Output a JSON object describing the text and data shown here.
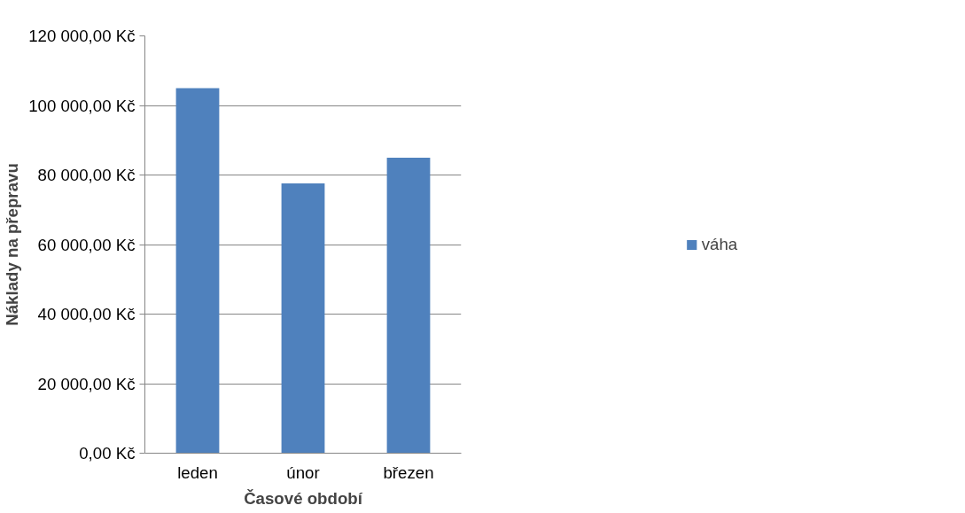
{
  "chart_data": {
    "type": "bar",
    "xlabel": "Časové období",
    "ylabel": "Náklady na přepravu",
    "categories": [
      "leden",
      "únor",
      "březen"
    ],
    "series": [
      {
        "name": "váha",
        "color": "#4f81bd",
        "values": [
          105000,
          77600,
          85000
        ]
      }
    ],
    "ylim": [
      0,
      120000
    ],
    "yticks": [
      {
        "value": 0,
        "label": "0,00 Kč"
      },
      {
        "value": 20000,
        "label": "20 000,00 Kč"
      },
      {
        "value": 40000,
        "label": "40 000,00 Kč"
      },
      {
        "value": 60000,
        "label": "60 000,00 Kč"
      },
      {
        "value": 80000,
        "label": "80 000,00 Kč"
      },
      {
        "value": 100000,
        "label": "100 000,00 Kč"
      },
      {
        "value": 120000,
        "label": "120 000,00 Kč"
      }
    ],
    "grid": "y",
    "legend": "right"
  }
}
